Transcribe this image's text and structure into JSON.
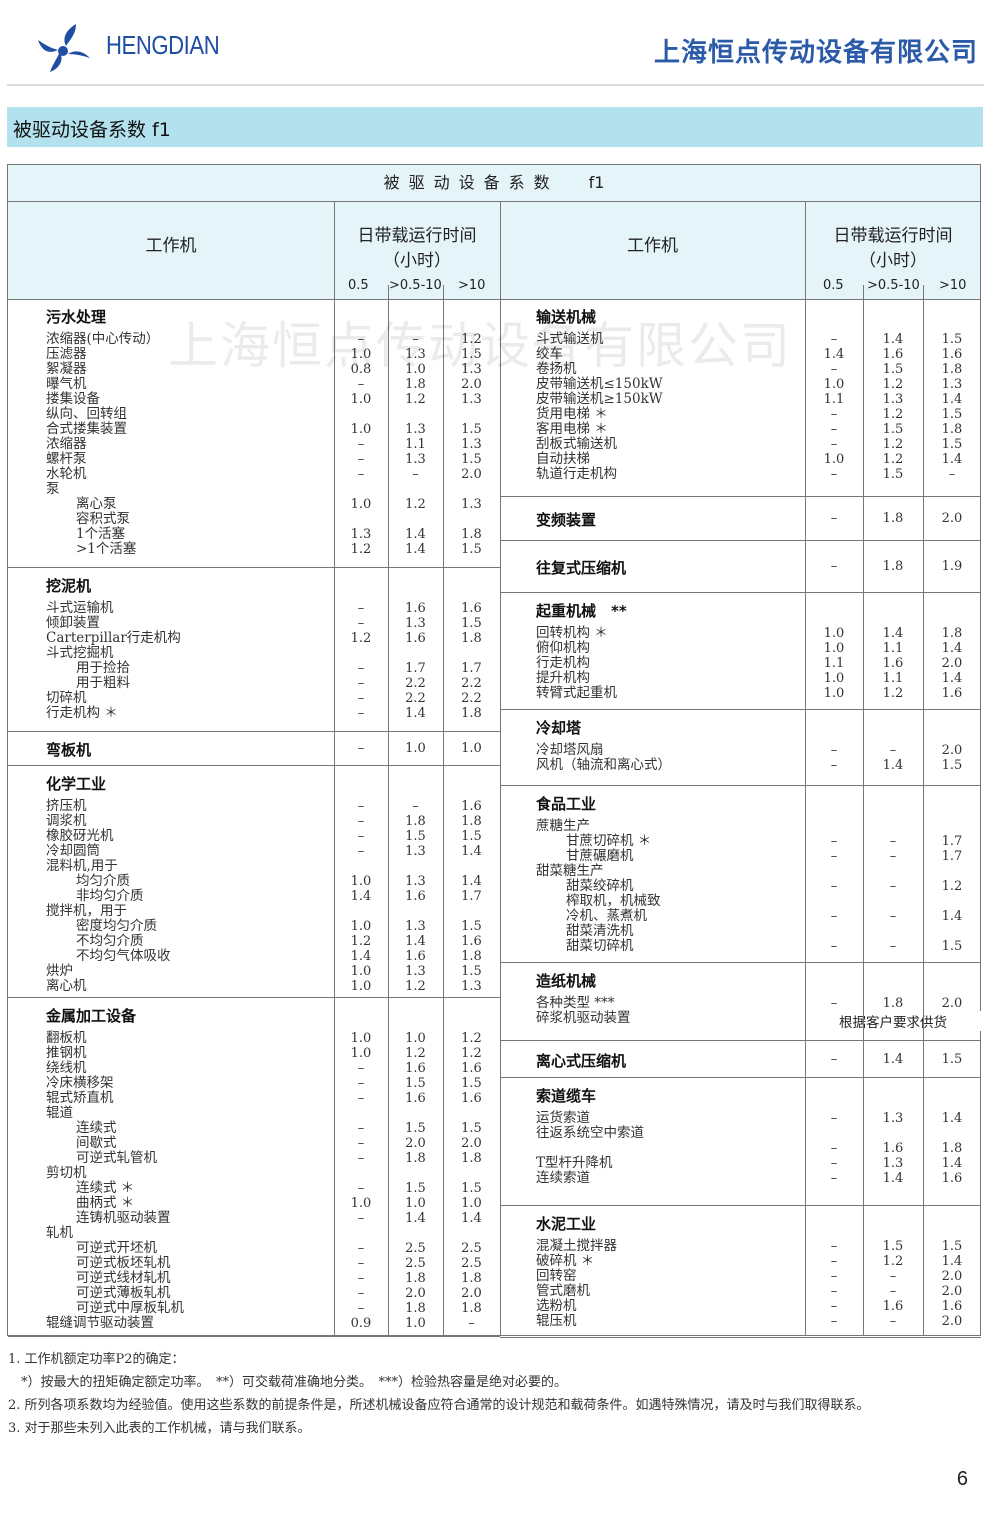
{
  "header": {
    "brand": "HENGDIAN",
    "company": "上海恒点传动设备有限公司",
    "logo_icon": "pinwheel-logo-icon",
    "brand_color": "#1f4ea3"
  },
  "banner": {
    "title": "被驱动设备系数 f1",
    "bg_color": "#b3e2ee"
  },
  "watermark": "上海恒点传动设备有限公司",
  "table": {
    "title": "被驱动设备系数",
    "title_symbol": "f1",
    "col_machine": "工作机",
    "col_time": "日带载运行时间",
    "col_time_unit": "（小时）",
    "sub_cols": [
      "0.5",
      ">0.5-10",
      ">10"
    ],
    "left": [
      {
        "title": "污水处理",
        "rows": [
          [
            "浓缩器(中心传动）",
            0,
            "–",
            "–",
            "1.2"
          ],
          [
            "压滤器",
            0,
            "1.0",
            "1.3",
            "1.5"
          ],
          [
            "絮凝器",
            0,
            "0.8",
            "1.0",
            "1.3"
          ],
          [
            "曝气机",
            0,
            "–",
            "1.8",
            "2.0"
          ],
          [
            "搂集设备",
            0,
            "1.0",
            "1.2",
            "1.3"
          ],
          [
            "纵向、回转组",
            0,
            "",
            "",
            ""
          ],
          [
            "合式搂集装置",
            0,
            "1.0",
            "1.3",
            "1.5"
          ],
          [
            "浓缩器",
            0,
            "–",
            "1.1",
            "1.3"
          ],
          [
            "螺杆泵",
            0,
            "–",
            "1.3",
            "1.5"
          ],
          [
            "水轮机",
            0,
            "–",
            "–",
            "2.0"
          ],
          [
            "泵",
            0,
            "",
            "",
            ""
          ],
          [
            "离心泵",
            1,
            "1.0",
            "1.2",
            "1.3"
          ],
          [
            "容积式泵",
            1,
            "",
            "",
            ""
          ],
          [
            "1个活塞",
            1,
            "1.3",
            "1.4",
            "1.8"
          ],
          [
            ">1个活塞",
            1,
            "1.2",
            "1.4",
            "1.5"
          ]
        ]
      },
      {
        "title": "挖泥机",
        "rows": [
          [
            "斗式运输机",
            0,
            "–",
            "1.6",
            "1.6"
          ],
          [
            "倾卸装置",
            0,
            "–",
            "1.3",
            "1.5"
          ],
          [
            "Carterpillar行走机构",
            0,
            "1.2",
            "1.6",
            "1.8"
          ],
          [
            "斗式挖掘机",
            0,
            "",
            "",
            ""
          ],
          [
            "用于捡拾",
            1,
            "–",
            "1.7",
            "1.7"
          ],
          [
            "用于粗料",
            1,
            "–",
            "2.2",
            "2.2"
          ],
          [
            "切碎机",
            0,
            "–",
            "2.2",
            "2.2"
          ],
          [
            "行走机构 ＊",
            0,
            "–",
            "1.4",
            "1.8"
          ]
        ]
      },
      {
        "title": "弯板机",
        "values": [
          "–",
          "1.0",
          "1.0"
        ],
        "rows": []
      },
      {
        "title": "化学工业",
        "rows": [
          [
            "挤压机",
            0,
            "–",
            "–",
            "1.6"
          ],
          [
            "调浆机",
            0,
            "–",
            "1.8",
            "1.8"
          ],
          [
            "橡胶砑光机",
            0,
            "–",
            "1.5",
            "1.5"
          ],
          [
            "冷却圆筒",
            0,
            "–",
            "1.3",
            "1.4"
          ],
          [
            "混料机,用于",
            0,
            "",
            "",
            ""
          ],
          [
            "均匀介质",
            1,
            "1.0",
            "1.3",
            "1.4"
          ],
          [
            "非均匀介质",
            1,
            "1.4",
            "1.6",
            "1.7"
          ],
          [
            "搅拌机，用于",
            0,
            "",
            "",
            ""
          ],
          [
            "密度均匀介质",
            1,
            "1.0",
            "1.3",
            "1.5"
          ],
          [
            "不均匀介质",
            1,
            "1.2",
            "1.4",
            "1.6"
          ],
          [
            "不均匀气体吸收",
            1,
            "1.4",
            "1.6",
            "1.8"
          ],
          [
            "烘炉",
            0,
            "1.0",
            "1.3",
            "1.5"
          ],
          [
            "离心机",
            0,
            "1.0",
            "1.2",
            "1.3"
          ]
        ]
      },
      {
        "title": "金属加工设备",
        "rows": [
          [
            "翻板机",
            0,
            "1.0",
            "1.0",
            "1.2"
          ],
          [
            "推钢机",
            0,
            "1.0",
            "1.2",
            "1.2"
          ],
          [
            "绕线机",
            0,
            "–",
            "1.6",
            "1.6"
          ],
          [
            "冷床横移架",
            0,
            "–",
            "1.5",
            "1.5"
          ],
          [
            "辊式矫直机",
            0,
            "–",
            "1.6",
            "1.6"
          ],
          [
            "辊道",
            0,
            "",
            "",
            ""
          ],
          [
            "连续式",
            1,
            "–",
            "1.5",
            "1.5"
          ],
          [
            "间歇式",
            1,
            "–",
            "2.0",
            "2.0"
          ],
          [
            "可逆式轧管机",
            1,
            "–",
            "1.8",
            "1.8"
          ],
          [
            "剪切机",
            0,
            "",
            "",
            ""
          ],
          [
            "连续式 ＊",
            1,
            "–",
            "1.5",
            "1.5"
          ],
          [
            "曲柄式 ＊",
            1,
            "1.0",
            "1.0",
            "1.0"
          ],
          [
            "连铸机驱动装置",
            1,
            "–",
            "1.4",
            "1.4"
          ],
          [
            "轧机",
            0,
            "",
            "",
            ""
          ],
          [
            "可逆式开坯机",
            1,
            "–",
            "2.5",
            "2.5"
          ],
          [
            "可逆式板坯轧机",
            1,
            "–",
            "2.5",
            "2.5"
          ],
          [
            "可逆式线材轧机",
            1,
            "–",
            "1.8",
            "1.8"
          ],
          [
            "可逆式薄板轧机",
            1,
            "–",
            "2.0",
            "2.0"
          ],
          [
            "可逆式中厚板轧机",
            1,
            "–",
            "1.8",
            "1.8"
          ],
          [
            "辊缝调节驱动装置",
            0,
            "0.9",
            "1.0",
            "–"
          ]
        ]
      }
    ],
    "right": [
      {
        "title": "输送机械",
        "rows": [
          [
            "斗式输送机",
            0,
            "–",
            "1.4",
            "1.5"
          ],
          [
            "绞车",
            0,
            "1.4",
            "1.6",
            "1.6"
          ],
          [
            "卷扬机",
            0,
            "–",
            "1.5",
            "1.8"
          ],
          [
            "皮带输送机≤150kW",
            0,
            "1.0",
            "1.2",
            "1.3"
          ],
          [
            "皮带输送机≥150kW",
            0,
            "1.1",
            "1.3",
            "1.4"
          ],
          [
            "货用电梯 ＊",
            0,
            "–",
            "1.2",
            "1.5"
          ],
          [
            "客用电梯 ＊",
            0,
            "–",
            "1.5",
            "1.8"
          ],
          [
            "刮板式输送机",
            0,
            "–",
            "1.2",
            "1.5"
          ],
          [
            "自动扶梯",
            0,
            "1.0",
            "1.2",
            "1.4"
          ],
          [
            "轨道行走机构",
            0,
            "–",
            "1.5",
            "–"
          ]
        ]
      },
      {
        "title": "变频装置",
        "values": [
          "–",
          "1.8",
          "2.0"
        ],
        "rows": []
      },
      {
        "title": "往复式压缩机",
        "values": [
          "–",
          "1.8",
          "1.9"
        ],
        "rows": []
      },
      {
        "title": "起重机械　**",
        "rows": [
          [
            "回转机构 ＊",
            0,
            "1.0",
            "1.4",
            "1.8"
          ],
          [
            "俯仰机构",
            0,
            "1.0",
            "1.1",
            "1.4"
          ],
          [
            "行走机构",
            0,
            "1.1",
            "1.6",
            "2.0"
          ],
          [
            "提升机构",
            0,
            "1.0",
            "1.1",
            "1.4"
          ],
          [
            "转臂式起重机",
            0,
            "1.0",
            "1.2",
            "1.6"
          ]
        ]
      },
      {
        "title": "冷却塔",
        "rows": [
          [
            "冷却塔风扇",
            0,
            "–",
            "–",
            "2.0"
          ],
          [
            "风机（轴流和离心式）",
            0,
            "–",
            "1.4",
            "1.5"
          ]
        ]
      },
      {
        "title": "食品工业",
        "rows": [
          [
            "蔗糖生产",
            0,
            "",
            "",
            ""
          ],
          [
            "甘蔗切碎机 ＊",
            1,
            "–",
            "–",
            "1.7"
          ],
          [
            "甘蔗碾磨机",
            1,
            "–",
            "–",
            "1.7"
          ],
          [
            "甜菜糖生产",
            0,
            "",
            "",
            ""
          ],
          [
            "甜菜绞碎机",
            1,
            "–",
            "–",
            "1.2"
          ],
          [
            "榨取机，机械致",
            1,
            "",
            "",
            ""
          ],
          [
            "冷机、蒸煮机",
            1,
            "–",
            "–",
            "1.4"
          ],
          [
            "甜菜清洗机",
            1,
            "",
            "",
            ""
          ],
          [
            "甜菜切碎机",
            1,
            "–",
            "–",
            "1.5"
          ]
        ]
      },
      {
        "title": "造纸机械",
        "rows": [
          [
            "各种类型 ***",
            0,
            "–",
            "1.8",
            "2.0"
          ],
          [
            "碎浆机驱动装置",
            0,
            "",
            "",
            ""
          ]
        ],
        "merged_note": "根据客户要求供货"
      },
      {
        "title": "离心式压缩机",
        "values": [
          "–",
          "1.4",
          "1.5"
        ],
        "rows": []
      },
      {
        "title": "索道缆车",
        "rows": [
          [
            "运货索道",
            0,
            "–",
            "1.3",
            "1.4"
          ],
          [
            "往返系统空中索道",
            0,
            "",
            "",
            ""
          ],
          [
            "",
            0,
            "–",
            "1.6",
            "1.8"
          ],
          [
            "T型杆升降机",
            0,
            "–",
            "1.3",
            "1.4"
          ],
          [
            "连续索道",
            0,
            "–",
            "1.4",
            "1.6"
          ]
        ]
      },
      {
        "title": "水泥工业",
        "rows": [
          [
            "混凝土搅拌器",
            0,
            "–",
            "1.5",
            "1.5"
          ],
          [
            "破碎机 ＊",
            0,
            "–",
            "1.2",
            "1.4"
          ],
          [
            "回转窑",
            0,
            "–",
            "–",
            "2.0"
          ],
          [
            "管式磨机",
            0,
            "–",
            "–",
            "2.0"
          ],
          [
            "选粉机",
            0,
            "–",
            "1.6",
            "1.6"
          ],
          [
            "辊压机",
            0,
            "–",
            "–",
            "2.0"
          ]
        ]
      }
    ]
  },
  "notes": [
    "1. 工作机额定功率P2的确定：",
    "　*）按最大的扭矩确定额定功率。　**）可交载荷准确地分类。　***）检验热容量是绝对必要的。",
    "2. 所列各项系数均为经验值。使用这些系数的前提条件是，所述机械设备应符合通常的设计规范和载荷条件。如遇特殊情况，请及时与我们取得联系。",
    "3. 对于那些未列入此表的工作机械，请与我们联系。"
  ],
  "page_number": "6"
}
